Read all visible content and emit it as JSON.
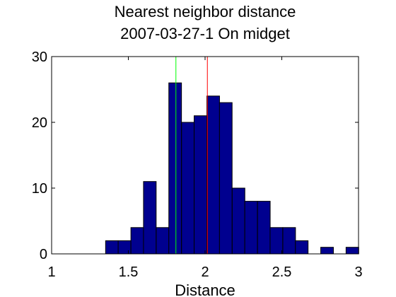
{
  "chart_data": {
    "type": "bar",
    "title": "Nearest neighbor distance",
    "subtitle": "2007-03-27-1 On midget",
    "xlabel": "Distance",
    "ylabel": "",
    "xlim": [
      1,
      3
    ],
    "ylim": [
      0,
      30
    ],
    "xticks": [
      1,
      1.5,
      2,
      2.5,
      3
    ],
    "xtick_labels": [
      "1",
      "1.5",
      "2",
      "2.5",
      "3"
    ],
    "yticks": [
      0,
      10,
      20,
      30
    ],
    "ytick_labels": [
      "0",
      "10",
      "20",
      "30"
    ],
    "grid": false,
    "bin_width": 0.0825,
    "bar_color": "#00008f",
    "bins": [
      {
        "x": 1.393,
        "count": 2
      },
      {
        "x": 1.475,
        "count": 2
      },
      {
        "x": 1.558,
        "count": 4
      },
      {
        "x": 1.64,
        "count": 11
      },
      {
        "x": 1.723,
        "count": 4
      },
      {
        "x": 1.805,
        "count": 26
      },
      {
        "x": 1.888,
        "count": 20
      },
      {
        "x": 1.97,
        "count": 21
      },
      {
        "x": 2.053,
        "count": 24
      },
      {
        "x": 2.135,
        "count": 23
      },
      {
        "x": 2.218,
        "count": 10
      },
      {
        "x": 2.3,
        "count": 8
      },
      {
        "x": 2.383,
        "count": 8
      },
      {
        "x": 2.465,
        "count": 4
      },
      {
        "x": 2.548,
        "count": 4
      },
      {
        "x": 2.63,
        "count": 2
      },
      {
        "x": 2.713,
        "count": 0
      },
      {
        "x": 2.795,
        "count": 1
      },
      {
        "x": 2.878,
        "count": 0
      },
      {
        "x": 2.96,
        "count": 1
      }
    ],
    "reference_lines": [
      {
        "x": 1.81,
        "color": "#00ff00"
      },
      {
        "x": 2.015,
        "color": "#ff0000"
      }
    ]
  }
}
